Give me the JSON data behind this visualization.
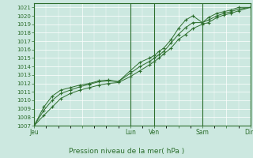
{
  "xlabel": "Pression niveau de la mer( hPa )",
  "bg_color": "#cce8e0",
  "grid_color": "#ffffff",
  "line_color": "#2d6e2d",
  "marker_color": "#2d6e2d",
  "ylim": [
    1007,
    1021.5
  ],
  "ytick_vals": [
    1007,
    1008,
    1009,
    1010,
    1011,
    1012,
    1013,
    1014,
    1015,
    1016,
    1017,
    1018,
    1019,
    1020,
    1021
  ],
  "xtick_labels": [
    "Jeu",
    "",
    "Lun",
    "Ven",
    "",
    "Sam",
    "",
    "Dim"
  ],
  "xtick_positions": [
    0,
    40,
    80,
    100,
    120,
    140,
    160,
    180
  ],
  "total_width": 180,
  "series1_x": [
    0,
    8,
    15,
    22,
    30,
    38,
    46,
    54,
    62,
    70,
    80,
    88,
    96,
    100,
    104,
    108,
    114,
    120,
    126,
    132,
    140,
    145,
    152,
    158,
    164,
    170,
    180
  ],
  "series1_y": [
    1007.0,
    1008.2,
    1009.2,
    1010.2,
    1010.8,
    1011.2,
    1011.5,
    1011.8,
    1012.0,
    1012.1,
    1012.8,
    1013.5,
    1014.2,
    1014.6,
    1015.0,
    1015.5,
    1016.2,
    1017.2,
    1017.8,
    1018.5,
    1019.0,
    1019.2,
    1019.8,
    1020.1,
    1020.3,
    1020.6,
    1021.0
  ],
  "series2_x": [
    0,
    8,
    15,
    22,
    30,
    38,
    46,
    54,
    62,
    70,
    80,
    88,
    96,
    100,
    104,
    108,
    114,
    120,
    126,
    132,
    140,
    145,
    152,
    158,
    164,
    170,
    180
  ],
  "series2_y": [
    1007.0,
    1008.8,
    1010.0,
    1010.8,
    1011.2,
    1011.6,
    1011.9,
    1012.2,
    1012.3,
    1012.2,
    1013.2,
    1014.0,
    1014.6,
    1015.0,
    1015.4,
    1015.8,
    1016.8,
    1017.8,
    1018.6,
    1019.2,
    1019.2,
    1019.5,
    1020.0,
    1020.3,
    1020.5,
    1020.8,
    1021.0
  ],
  "series3_x": [
    0,
    8,
    15,
    22,
    30,
    38,
    46,
    54,
    62,
    70,
    80,
    88,
    96,
    100,
    104,
    108,
    114,
    120,
    126,
    132,
    140,
    145,
    152,
    158,
    164,
    170,
    180
  ],
  "series3_y": [
    1007.0,
    1009.2,
    1010.5,
    1011.2,
    1011.5,
    1011.8,
    1012.0,
    1012.3,
    1012.4,
    1012.2,
    1013.5,
    1014.5,
    1015.0,
    1015.3,
    1015.8,
    1016.2,
    1017.2,
    1018.5,
    1019.5,
    1020.0,
    1019.2,
    1019.8,
    1020.3,
    1020.5,
    1020.7,
    1021.0,
    1021.0
  ],
  "vline_positions": [
    0,
    80,
    100,
    140,
    180
  ]
}
